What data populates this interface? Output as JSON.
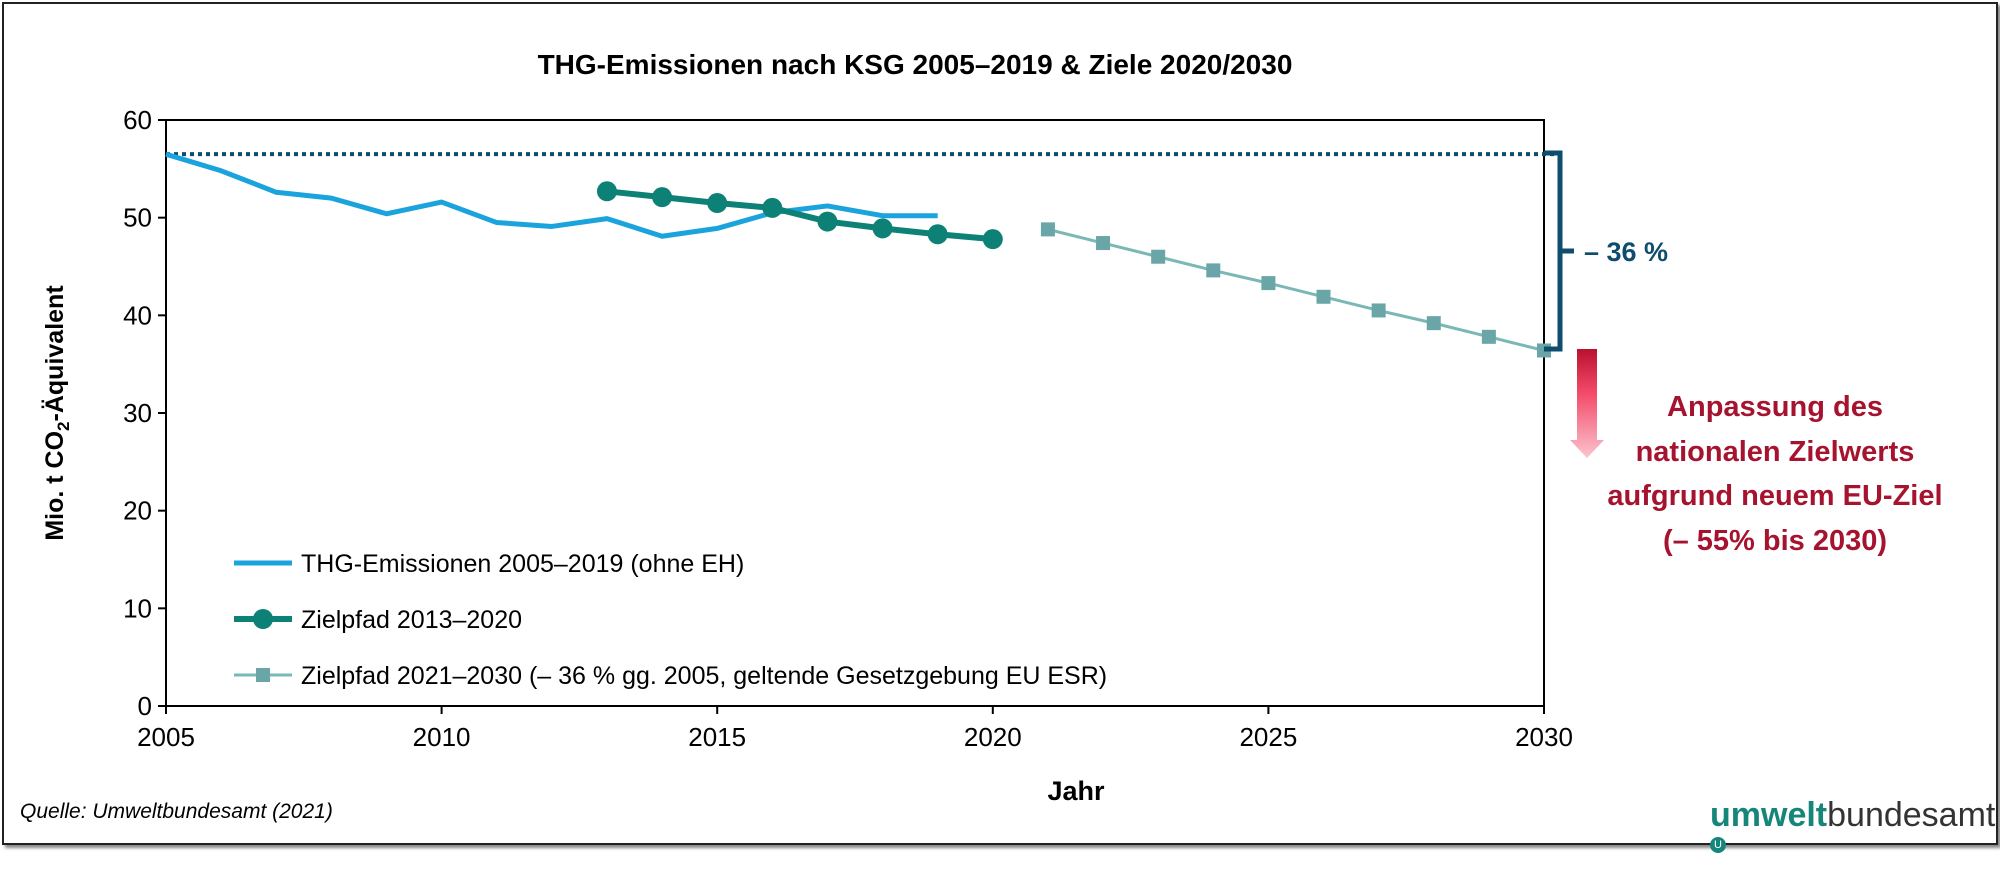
{
  "chart_data": {
    "type": "line",
    "title": "THG-Emissionen nach KSG 2005–2019 & Ziele 2020/2030",
    "xlabel": "Jahr",
    "ylabel_main": "Mio. t CO",
    "ylabel_sub": "2",
    "ylabel_tail": "-Äquivalent",
    "xlim": [
      2005,
      2030
    ],
    "ylim": [
      0,
      60
    ],
    "xticks": [
      2005,
      2010,
      2015,
      2020,
      2025,
      2030
    ],
    "yticks": [
      0,
      10,
      20,
      30,
      40,
      50,
      60
    ],
    "grid": false,
    "legend_position": "bottom-left",
    "series": [
      {
        "name": "THG-Emissionen 2005–2019 (ohne EH)",
        "color": "#1aa3dc",
        "marker": "none",
        "x": [
          2005,
          2006,
          2007,
          2008,
          2009,
          2010,
          2011,
          2012,
          2013,
          2014,
          2015,
          2016,
          2017,
          2018,
          2019
        ],
        "y": [
          56.5,
          54.8,
          52.6,
          52.0,
          50.4,
          51.6,
          49.5,
          49.1,
          49.9,
          48.1,
          48.9,
          50.5,
          51.2,
          50.2,
          50.2
        ]
      },
      {
        "name": "Zielpfad 2013–2020",
        "color": "#0e8177",
        "marker": "circle",
        "x": [
          2013,
          2014,
          2015,
          2016,
          2017,
          2018,
          2019,
          2020
        ],
        "y": [
          52.7,
          52.1,
          51.5,
          51.0,
          49.6,
          48.9,
          48.3,
          47.8
        ]
      },
      {
        "name": "Zielpfad 2021–2030 (– 36 % gg. 2005, geltende Gesetzgebung EU ESR)",
        "color": "#7ab8b5",
        "marker": "square",
        "x": [
          2021,
          2022,
          2023,
          2024,
          2025,
          2026,
          2027,
          2028,
          2029,
          2030
        ],
        "y": [
          48.8,
          47.4,
          46.0,
          44.6,
          43.3,
          41.9,
          40.5,
          39.2,
          37.8,
          36.4
        ]
      }
    ],
    "reference_line": {
      "y": 56.5,
      "style": "dotted",
      "color": "#0e4d6e"
    },
    "annotations": {
      "reduction_label": "– 36 %",
      "reduction_color": "#0e4d6e",
      "note_lines": [
        "Anpassung des",
        "nationalen Zielwerts",
        "aufgrund neuem EU-Ziel",
        "(– 55% bis 2030)"
      ],
      "note_color": "#a6132f"
    }
  },
  "footer": {
    "source": "Quelle: Umweltbundesamt (2021)",
    "logo_bold": "umwelt",
    "logo_regular": "bundesamt",
    "logo_mark": "U"
  }
}
